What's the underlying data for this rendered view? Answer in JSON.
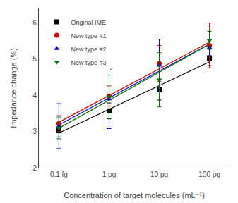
{
  "chart_data": {
    "type": "scatter",
    "xlabel": "Concentration of target molecules (mL⁻¹)",
    "ylabel": "Impedance change (%)",
    "categories": [
      "0.1 fg",
      "1 pg",
      "10 pg",
      "100 pg"
    ],
    "ylim": [
      2.0,
      6.4
    ],
    "yticks": [
      2,
      3,
      4,
      5,
      6
    ],
    "grid": false,
    "legend": "upper left",
    "series": [
      {
        "name": "Original IME",
        "color": "#000000",
        "marker": "square",
        "values": [
          3.03,
          3.57,
          4.15,
          5.02
        ],
        "errors": [
          0.18,
          0.22,
          0.28,
          0.2
        ],
        "fit": [
          2.96,
          4.925
        ]
      },
      {
        "name": "New type #1",
        "color": "#dd0000",
        "marker": "circle",
        "values": [
          3.22,
          3.98,
          4.88,
          5.38
        ],
        "errors": [
          0.22,
          0.28,
          0.5,
          0.62
        ],
        "fit": [
          3.258,
          5.472
        ]
      },
      {
        "name": "New type #2",
        "color": "#0000cc",
        "marker": "triangle-up",
        "values": [
          3.15,
          3.9,
          4.83,
          5.32
        ],
        "errors": [
          0.62,
          0.82,
          0.72,
          0.22
        ],
        "fit": [
          3.184,
          5.416
        ]
      },
      {
        "name": "New type #3",
        "color": "#007700",
        "marker": "triangle-down",
        "values": [
          3.1,
          3.96,
          4.43,
          5.52
        ],
        "errors": [
          0.3,
          0.6,
          0.75,
          0.25
        ],
        "fit": [
          3.093,
          5.412
        ]
      }
    ]
  }
}
